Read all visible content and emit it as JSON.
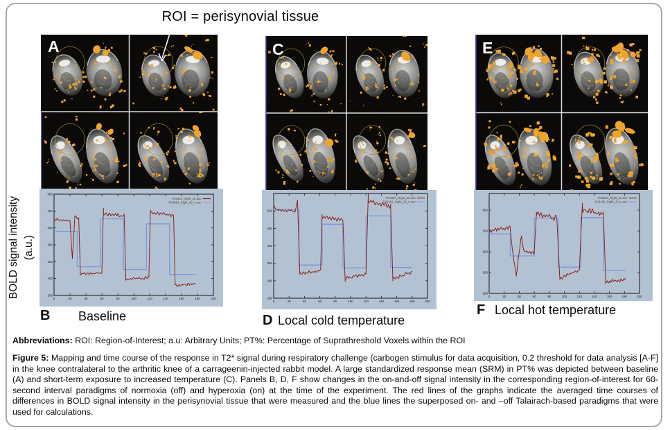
{
  "figure_title": "ROI = perisynovial tissue",
  "ylabel": {
    "line1": "BOLD signal intensity",
    "line2": "(a.u.)"
  },
  "panels": [
    {
      "image_label": "A",
      "graph_label": "B",
      "caption": "Baseline"
    },
    {
      "image_label": "C",
      "graph_label": "D",
      "caption": "Local cold temperature"
    },
    {
      "image_label": "E",
      "graph_label": "F",
      "caption": "Local hot temperature"
    }
  ],
  "abbreviations": {
    "lead": "Abbreviations:",
    "text": " ROI: Region-of-Interest; a.u: Arbitrary Units; PT%: Percentage of Suprathreshold Voxels within the ROI"
  },
  "figure_caption": {
    "lead": "Figure 5:",
    "text": " Mapping and time course of the response in T2* signal during respiratory challenge (carbogen stimulus for data acquisition, 0.2 threshold for data analysis [A-F] in the knee contralateral to the arthritic knee of a carrageenin-injected rabbit model. A large standardized response mean (SRM) in PT% was depicted between baseline (A) and short-term exposure to increased temperature (C). Panels B, D, F show changes in the on-and-off signal intensity in the corresponding region-of-interest for 60-second interval paradigms of normoxia (off) and hyperoxia (on) at the time of the experiment. The red lines of the graphs indicate the averaged time courses of differences in BOLD signal intensity in the perisynovial tissue that were measured and the blue lines the superposed on- and –off Talairach-based paradigms that were used for calculations."
  },
  "colors": {
    "graph_bg": "#b3c2d2",
    "red_line": "#861e14",
    "blue_line": "#7e98de",
    "overlay_orange": "#eea42d",
    "roi_outline": "#9b9640",
    "frame": "#15151a",
    "tick_text": "#15151a",
    "legend_text": "#5a4336",
    "mri_background": "#0b0a09"
  },
  "chart_data": [
    {
      "panel": "B",
      "type": "line",
      "title": "Baseline",
      "xlabel": "",
      "ylabel": "BOLD signal intensity (a.u.)",
      "xlim": [
        0,
        200
      ],
      "ylim": [
        200,
        500
      ],
      "xticks": [
        0,
        20,
        40,
        60,
        80,
        100,
        120,
        140,
        160,
        180,
        200
      ],
      "yticks": [
        200,
        250,
        300,
        350,
        400,
        450,
        500
      ],
      "legend_position": "top-right",
      "grid": false,
      "seed": 11,
      "series": [
        {
          "name": "'P04064_Right_20.asc'",
          "role": "signal",
          "color_key": "red_line",
          "segments": [
            {
              "x0": 0,
              "x1": 20,
              "y0": 426,
              "y1": 421,
              "amp": 5
            },
            {
              "x0": 20,
              "x1": 23,
              "y0": 421,
              "y1": 308,
              "amp": 2
            },
            {
              "x0": 23,
              "x1": 26,
              "y0": 308,
              "y1": 430,
              "amp": 2
            },
            {
              "x0": 26,
              "x1": 31,
              "y0": 433,
              "y1": 427,
              "amp": 4
            },
            {
              "x0": 31,
              "x1": 33,
              "y0": 427,
              "y1": 270,
              "amp": 2
            },
            {
              "x0": 33,
              "x1": 60,
              "y0": 263,
              "y1": 268,
              "amp": 5
            },
            {
              "x0": 60,
              "x1": 62,
              "y0": 268,
              "y1": 458,
              "amp": 2
            },
            {
              "x0": 62,
              "x1": 88,
              "y0": 443,
              "y1": 435,
              "amp": 7
            },
            {
              "x0": 88,
              "x1": 90,
              "y0": 435,
              "y1": 258,
              "amp": 2
            },
            {
              "x0": 90,
              "x1": 119,
              "y0": 248,
              "y1": 253,
              "amp": 5
            },
            {
              "x0": 119,
              "x1": 121,
              "y0": 253,
              "y1": 455,
              "amp": 2
            },
            {
              "x0": 121,
              "x1": 150,
              "y0": 446,
              "y1": 437,
              "amp": 7
            },
            {
              "x0": 150,
              "x1": 152,
              "y0": 437,
              "y1": 232,
              "amp": 2
            },
            {
              "x0": 152,
              "x1": 178,
              "y0": 228,
              "y1": 237,
              "amp": 5
            }
          ]
        },
        {
          "name": "'P04064_Right_20_n.asc'",
          "role": "paradigm",
          "color_key": "blue_line",
          "steps": [
            {
              "x0": 0,
              "x1": 29,
              "y": 390
            },
            {
              "x0": 29,
              "x1": 58,
              "y": 285
            },
            {
              "x0": 58,
              "x1": 87,
              "y": 427
            },
            {
              "x0": 87,
              "x1": 116,
              "y": 277
            },
            {
              "x0": 116,
              "x1": 145,
              "y": 412
            },
            {
              "x0": 145,
              "x1": 178,
              "y": 262
            }
          ]
        }
      ]
    },
    {
      "panel": "D",
      "type": "line",
      "title": "Local cold temperature",
      "xlabel": "",
      "ylabel": "BOLD signal intensity (a.u.)",
      "xlim": [
        0,
        200
      ],
      "ylim": [
        250,
        550
      ],
      "xticks": [
        0,
        20,
        40,
        60,
        80,
        100,
        120,
        140,
        160,
        180,
        200
      ],
      "yticks": [
        250,
        300,
        350,
        400,
        450,
        500
      ],
      "legend_position": "top-right",
      "grid": false,
      "seed": 23,
      "series": [
        {
          "name": "'P26184_Right_20.asc'",
          "role": "signal",
          "color_key": "red_line",
          "segments": [
            {
              "x0": 0,
              "x1": 3,
              "y0": 516,
              "y1": 505,
              "amp": 3
            },
            {
              "x0": 3,
              "x1": 28,
              "y0": 503,
              "y1": 500,
              "amp": 4
            },
            {
              "x0": 28,
              "x1": 31,
              "y0": 500,
              "y1": 530,
              "amp": 2
            },
            {
              "x0": 31,
              "x1": 34,
              "y0": 530,
              "y1": 318,
              "amp": 2
            },
            {
              "x0": 34,
              "x1": 61,
              "y0": 320,
              "y1": 330,
              "amp": 5
            },
            {
              "x0": 61,
              "x1": 63,
              "y0": 330,
              "y1": 492,
              "amp": 2
            },
            {
              "x0": 63,
              "x1": 90,
              "y0": 482,
              "y1": 474,
              "amp": 6
            },
            {
              "x0": 90,
              "x1": 93,
              "y0": 474,
              "y1": 298,
              "amp": 2
            },
            {
              "x0": 93,
              "x1": 120,
              "y0": 308,
              "y1": 318,
              "amp": 6
            },
            {
              "x0": 120,
              "x1": 123,
              "y0": 318,
              "y1": 548,
              "amp": 2
            },
            {
              "x0": 123,
              "x1": 152,
              "y0": 528,
              "y1": 514,
              "amp": 8
            },
            {
              "x0": 152,
              "x1": 155,
              "y0": 514,
              "y1": 300,
              "amp": 2
            },
            {
              "x0": 155,
              "x1": 180,
              "y0": 306,
              "y1": 324,
              "amp": 6
            }
          ]
        },
        {
          "name": "'P26184_Right_20_n.asc'",
          "role": "paradigm",
          "color_key": "blue_line",
          "steps": [
            {
              "x0": 0,
              "x1": 33,
              "y": 505
            },
            {
              "x0": 33,
              "x1": 63,
              "y": 345
            },
            {
              "x0": 63,
              "x1": 90,
              "y": 462
            },
            {
              "x0": 90,
              "x1": 120,
              "y": 337
            },
            {
              "x0": 120,
              "x1": 152,
              "y": 486
            },
            {
              "x0": 152,
              "x1": 180,
              "y": 338
            }
          ]
        }
      ]
    },
    {
      "panel": "F",
      "type": "line",
      "title": "Local hot temperature",
      "xlabel": "",
      "ylabel": "BOLD signal intensity (a.u.)",
      "xlim": [
        0,
        200
      ],
      "ylim": [
        150,
        390
      ],
      "xticks": [
        0,
        20,
        40,
        60,
        80,
        100,
        120,
        140,
        160,
        180,
        200
      ],
      "yticks": [
        150,
        200,
        250,
        300,
        350
      ],
      "legend_position": "top-right",
      "grid": false,
      "seed": 37,
      "series": [
        {
          "name": "'P28160_Right_20.asc'",
          "role": "signal",
          "color_key": "red_line",
          "segments": [
            {
              "x0": 0,
              "x1": 28,
              "y0": 302,
              "y1": 308,
              "amp": 6
            },
            {
              "x0": 28,
              "x1": 31,
              "y0": 308,
              "y1": 252,
              "amp": 3
            },
            {
              "x0": 31,
              "x1": 36,
              "y0": 252,
              "y1": 193,
              "amp": 5
            },
            {
              "x0": 36,
              "x1": 40,
              "y0": 193,
              "y1": 252,
              "amp": 4
            },
            {
              "x0": 40,
              "x1": 43,
              "y0": 252,
              "y1": 287,
              "amp": 4
            },
            {
              "x0": 43,
              "x1": 46,
              "y0": 287,
              "y1": 250,
              "amp": 3
            },
            {
              "x0": 46,
              "x1": 60,
              "y0": 252,
              "y1": 248,
              "amp": 5
            },
            {
              "x0": 60,
              "x1": 63,
              "y0": 248,
              "y1": 345,
              "amp": 3
            },
            {
              "x0": 63,
              "x1": 90,
              "y0": 342,
              "y1": 331,
              "amp": 9
            },
            {
              "x0": 90,
              "x1": 94,
              "y0": 331,
              "y1": 183,
              "amp": 3
            },
            {
              "x0": 94,
              "x1": 120,
              "y0": 185,
              "y1": 207,
              "amp": 5
            },
            {
              "x0": 120,
              "x1": 124,
              "y0": 207,
              "y1": 368,
              "amp": 3
            },
            {
              "x0": 124,
              "x1": 152,
              "y0": 352,
              "y1": 340,
              "amp": 8
            },
            {
              "x0": 152,
              "x1": 155,
              "y0": 340,
              "y1": 180,
              "amp": 3
            },
            {
              "x0": 155,
              "x1": 182,
              "y0": 177,
              "y1": 184,
              "amp": 5
            }
          ]
        },
        {
          "name": "'P28160_Right_20_n.asc'",
          "role": "paradigm",
          "color_key": "blue_line",
          "steps": [
            {
              "x0": 0,
              "x1": 28,
              "y": 293
            },
            {
              "x0": 28,
              "x1": 60,
              "y": 240
            },
            {
              "x0": 60,
              "x1": 92,
              "y": 331
            },
            {
              "x0": 92,
              "x1": 122,
              "y": 213
            },
            {
              "x0": 122,
              "x1": 152,
              "y": 332
            },
            {
              "x0": 152,
              "x1": 182,
              "y": 205
            }
          ]
        }
      ]
    }
  ]
}
